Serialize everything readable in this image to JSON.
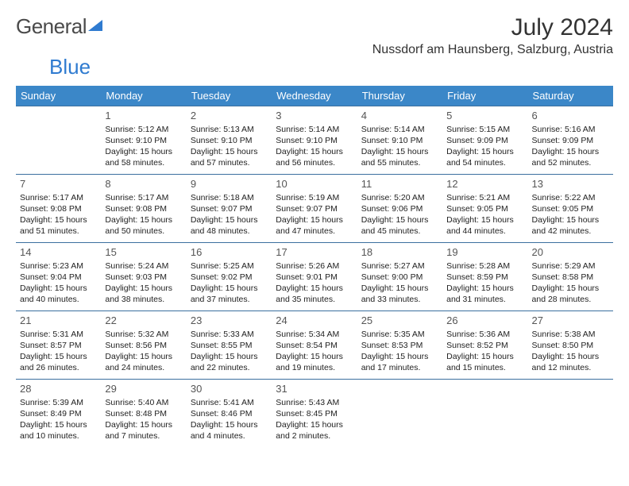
{
  "brand": {
    "part1": "General",
    "part2": "Blue"
  },
  "title": "July 2024",
  "location": "Nussdorf am Haunsberg, Salzburg, Austria",
  "colors": {
    "header_bg": "#3b87c8",
    "header_fg": "#ffffff",
    "row_border": "#3b6f9f",
    "logo_blue": "#2f7bd0",
    "text": "#1a1a1a"
  },
  "columns": [
    "Sunday",
    "Monday",
    "Tuesday",
    "Wednesday",
    "Thursday",
    "Friday",
    "Saturday"
  ],
  "weeks": [
    [
      null,
      {
        "n": "1",
        "sr": "5:12 AM",
        "ss": "9:10 PM",
        "dl": "15 hours and 58 minutes."
      },
      {
        "n": "2",
        "sr": "5:13 AM",
        "ss": "9:10 PM",
        "dl": "15 hours and 57 minutes."
      },
      {
        "n": "3",
        "sr": "5:14 AM",
        "ss": "9:10 PM",
        "dl": "15 hours and 56 minutes."
      },
      {
        "n": "4",
        "sr": "5:14 AM",
        "ss": "9:10 PM",
        "dl": "15 hours and 55 minutes."
      },
      {
        "n": "5",
        "sr": "5:15 AM",
        "ss": "9:09 PM",
        "dl": "15 hours and 54 minutes."
      },
      {
        "n": "6",
        "sr": "5:16 AM",
        "ss": "9:09 PM",
        "dl": "15 hours and 52 minutes."
      }
    ],
    [
      {
        "n": "7",
        "sr": "5:17 AM",
        "ss": "9:08 PM",
        "dl": "15 hours and 51 minutes."
      },
      {
        "n": "8",
        "sr": "5:17 AM",
        "ss": "9:08 PM",
        "dl": "15 hours and 50 minutes."
      },
      {
        "n": "9",
        "sr": "5:18 AM",
        "ss": "9:07 PM",
        "dl": "15 hours and 48 minutes."
      },
      {
        "n": "10",
        "sr": "5:19 AM",
        "ss": "9:07 PM",
        "dl": "15 hours and 47 minutes."
      },
      {
        "n": "11",
        "sr": "5:20 AM",
        "ss": "9:06 PM",
        "dl": "15 hours and 45 minutes."
      },
      {
        "n": "12",
        "sr": "5:21 AM",
        "ss": "9:05 PM",
        "dl": "15 hours and 44 minutes."
      },
      {
        "n": "13",
        "sr": "5:22 AM",
        "ss": "9:05 PM",
        "dl": "15 hours and 42 minutes."
      }
    ],
    [
      {
        "n": "14",
        "sr": "5:23 AM",
        "ss": "9:04 PM",
        "dl": "15 hours and 40 minutes."
      },
      {
        "n": "15",
        "sr": "5:24 AM",
        "ss": "9:03 PM",
        "dl": "15 hours and 38 minutes."
      },
      {
        "n": "16",
        "sr": "5:25 AM",
        "ss": "9:02 PM",
        "dl": "15 hours and 37 minutes."
      },
      {
        "n": "17",
        "sr": "5:26 AM",
        "ss": "9:01 PM",
        "dl": "15 hours and 35 minutes."
      },
      {
        "n": "18",
        "sr": "5:27 AM",
        "ss": "9:00 PM",
        "dl": "15 hours and 33 minutes."
      },
      {
        "n": "19",
        "sr": "5:28 AM",
        "ss": "8:59 PM",
        "dl": "15 hours and 31 minutes."
      },
      {
        "n": "20",
        "sr": "5:29 AM",
        "ss": "8:58 PM",
        "dl": "15 hours and 28 minutes."
      }
    ],
    [
      {
        "n": "21",
        "sr": "5:31 AM",
        "ss": "8:57 PM",
        "dl": "15 hours and 26 minutes."
      },
      {
        "n": "22",
        "sr": "5:32 AM",
        "ss": "8:56 PM",
        "dl": "15 hours and 24 minutes."
      },
      {
        "n": "23",
        "sr": "5:33 AM",
        "ss": "8:55 PM",
        "dl": "15 hours and 22 minutes."
      },
      {
        "n": "24",
        "sr": "5:34 AM",
        "ss": "8:54 PM",
        "dl": "15 hours and 19 minutes."
      },
      {
        "n": "25",
        "sr": "5:35 AM",
        "ss": "8:53 PM",
        "dl": "15 hours and 17 minutes."
      },
      {
        "n": "26",
        "sr": "5:36 AM",
        "ss": "8:52 PM",
        "dl": "15 hours and 15 minutes."
      },
      {
        "n": "27",
        "sr": "5:38 AM",
        "ss": "8:50 PM",
        "dl": "15 hours and 12 minutes."
      }
    ],
    [
      {
        "n": "28",
        "sr": "5:39 AM",
        "ss": "8:49 PM",
        "dl": "15 hours and 10 minutes."
      },
      {
        "n": "29",
        "sr": "5:40 AM",
        "ss": "8:48 PM",
        "dl": "15 hours and 7 minutes."
      },
      {
        "n": "30",
        "sr": "5:41 AM",
        "ss": "8:46 PM",
        "dl": "15 hours and 4 minutes."
      },
      {
        "n": "31",
        "sr": "5:43 AM",
        "ss": "8:45 PM",
        "dl": "15 hours and 2 minutes."
      },
      null,
      null,
      null
    ]
  ],
  "labels": {
    "sunrise": "Sunrise: ",
    "sunset": "Sunset: ",
    "daylight": "Daylight: "
  }
}
